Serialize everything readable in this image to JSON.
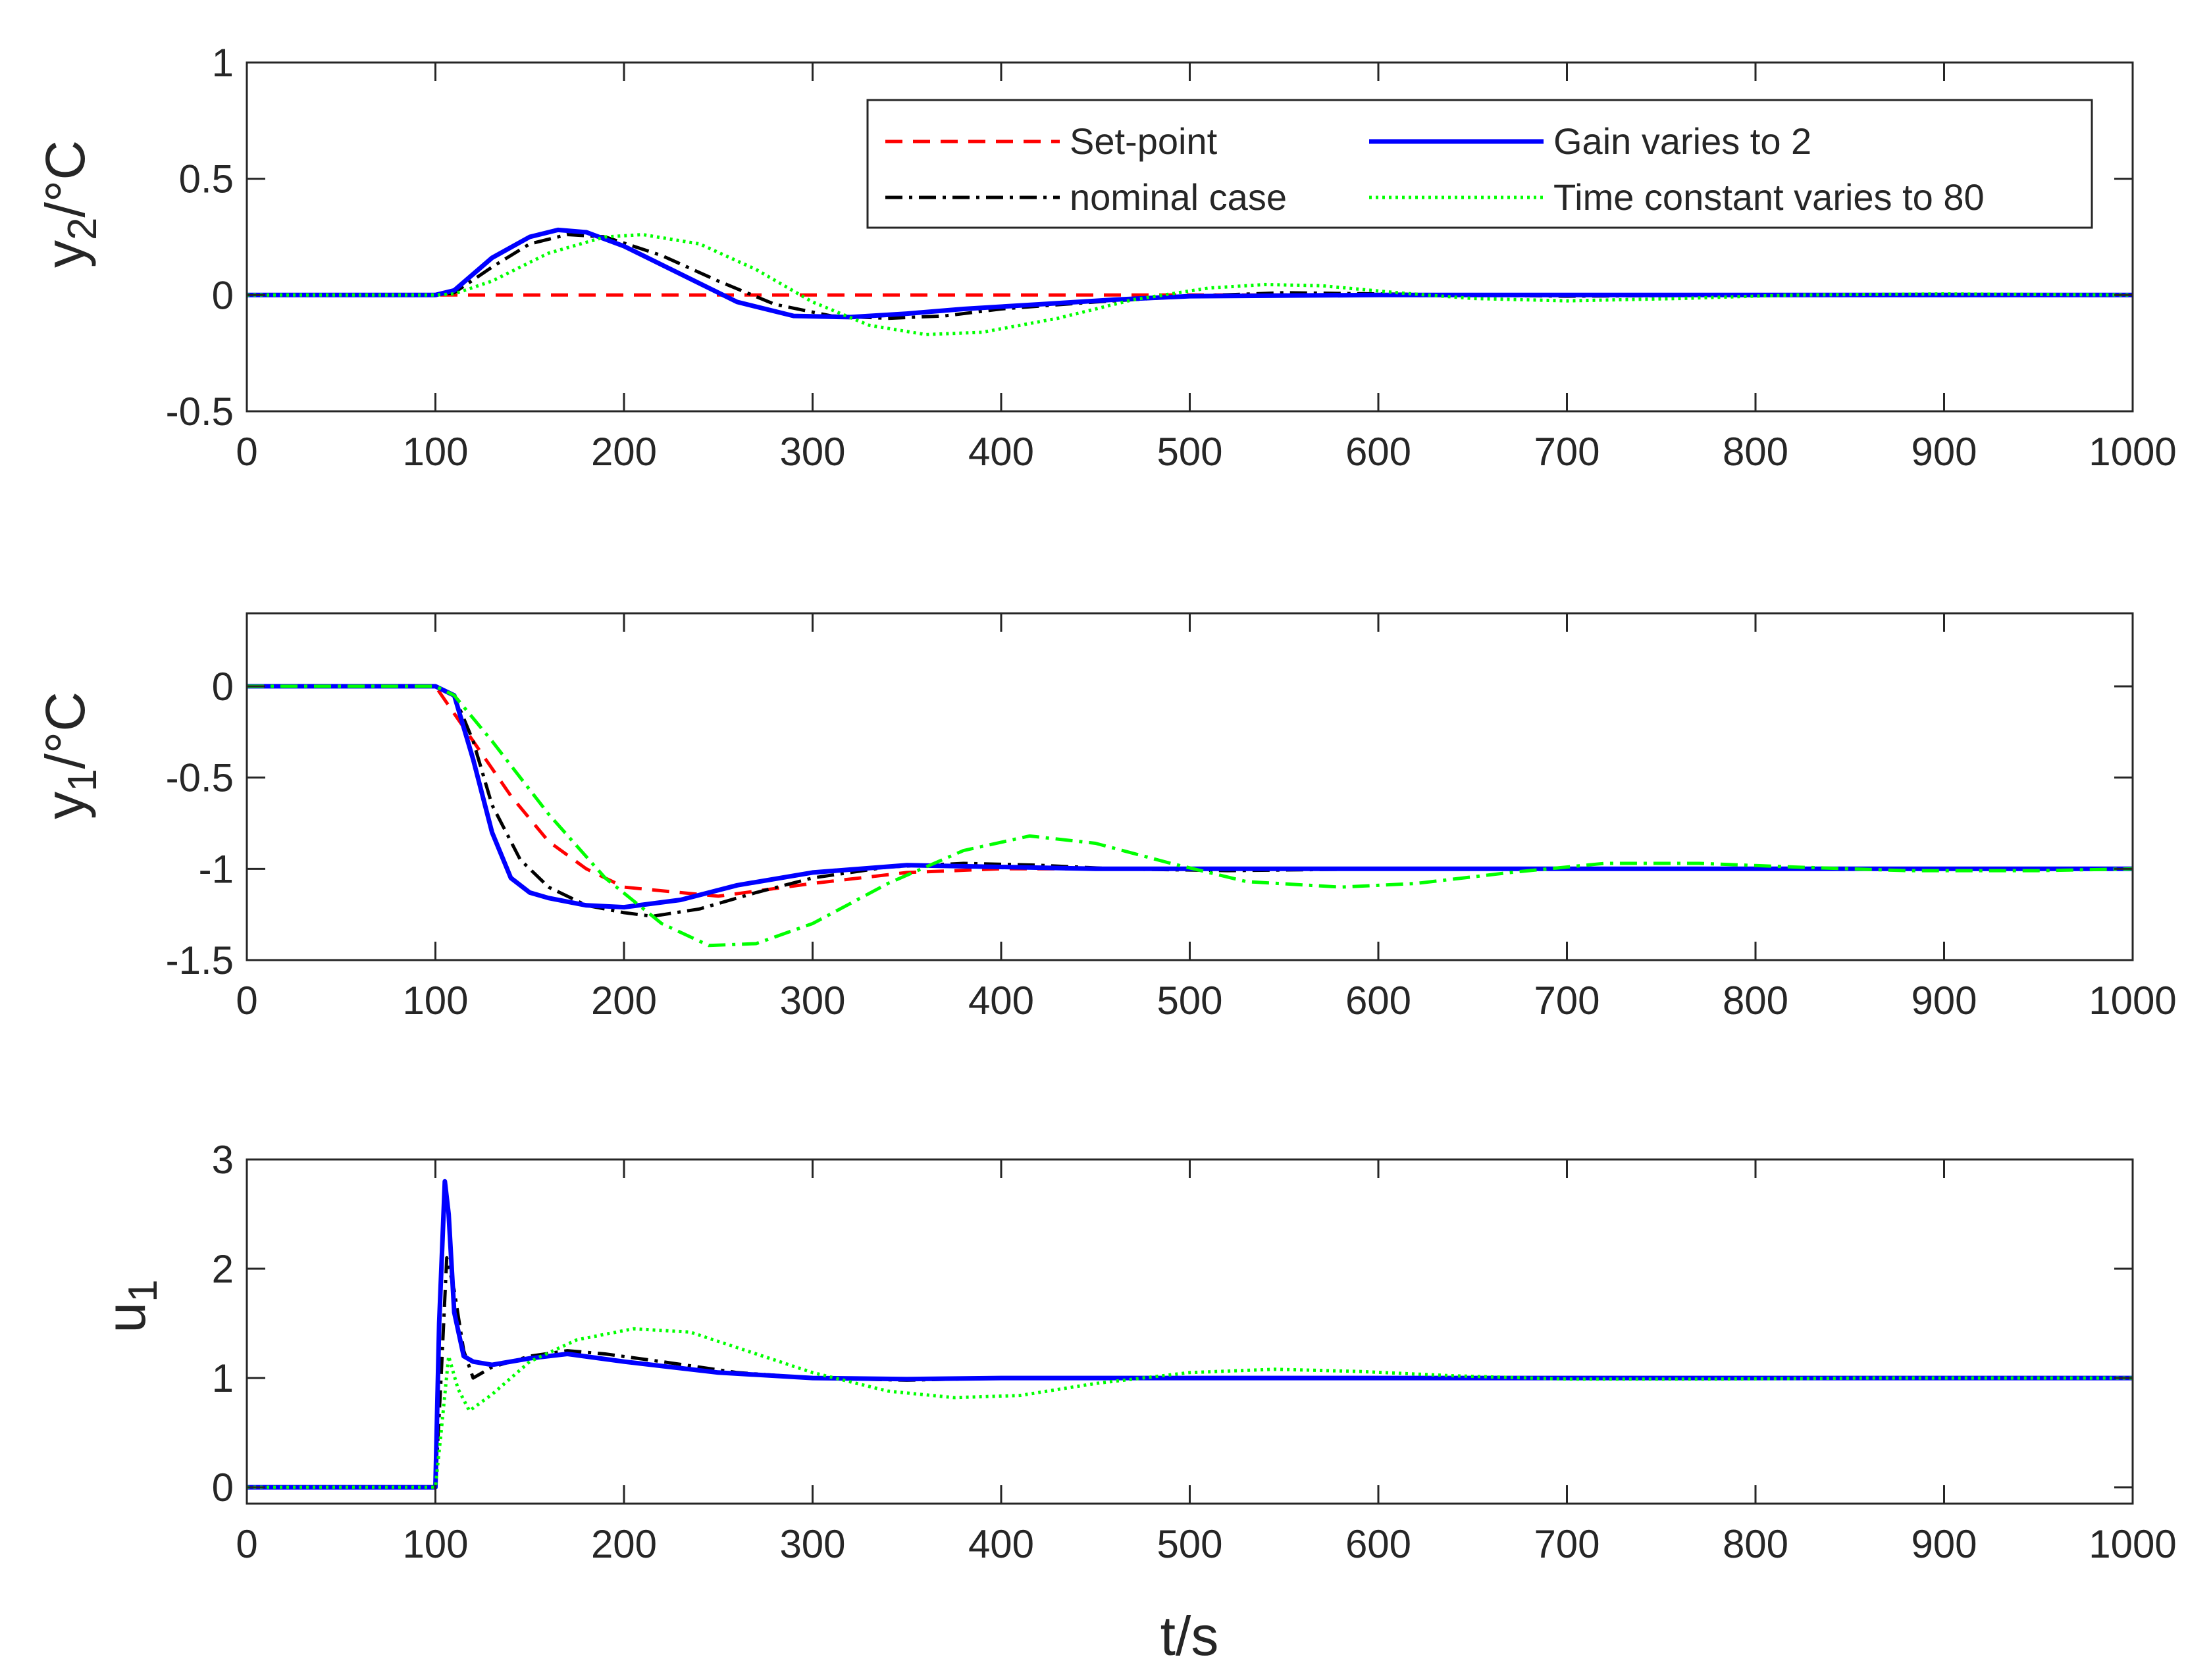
{
  "chart_data": [
    {
      "type": "line",
      "id": "y2",
      "ylabel": {
        "main": "y",
        "sub": "2",
        "unit": "/°C"
      },
      "xlabel": "",
      "xlim": [
        0,
        1000
      ],
      "ylim": [
        -0.5,
        1
      ],
      "xticks": [
        0,
        100,
        200,
        300,
        400,
        500,
        600,
        700,
        800,
        900,
        1000
      ],
      "yticks": [
        -0.5,
        0,
        0.5,
        1
      ],
      "xtick_labels": [
        "0",
        "100",
        "200",
        "300",
        "400",
        "500",
        "600",
        "700",
        "800",
        "900",
        "1000"
      ],
      "ytick_labels": [
        "-0.5",
        "0",
        "0.5",
        "1"
      ],
      "legend": {
        "position": "top-right",
        "entries": [
          {
            "series": "setpoint",
            "label": "Set-point"
          },
          {
            "series": "gain",
            "label": "Gain varies to 2"
          },
          {
            "series": "nominal",
            "label": "nominal case"
          },
          {
            "series": "timeconst",
            "label": "Time constant varies to 80"
          }
        ]
      },
      "series": [
        {
          "key": "setpoint",
          "name": "Set-point",
          "color": "#ff0000",
          "dash": "dashed",
          "x": [
            0,
            1000
          ],
          "y": [
            0,
            0
          ]
        },
        {
          "key": "nominal",
          "name": "nominal case",
          "color": "#000000",
          "dash": "dashdot",
          "x": [
            0,
            100,
            110,
            130,
            150,
            170,
            190,
            220,
            250,
            280,
            310,
            340,
            370,
            400,
            450,
            500,
            550,
            600,
            700,
            800,
            1000
          ],
          "y": [
            0,
            0,
            0.01,
            0.12,
            0.22,
            0.26,
            0.25,
            0.17,
            0.06,
            -0.04,
            -0.09,
            -0.1,
            -0.09,
            -0.06,
            -0.03,
            -0.005,
            0.01,
            0.005,
            -0.005,
            0,
            0
          ]
        },
        {
          "key": "gain",
          "name": "Gain varies to 2",
          "color": "#0000ff",
          "dash": "solid",
          "x": [
            0,
            100,
            110,
            130,
            150,
            165,
            180,
            200,
            230,
            260,
            290,
            320,
            350,
            380,
            420,
            460,
            500,
            600,
            700,
            1000
          ],
          "y": [
            0,
            0,
            0.02,
            0.16,
            0.25,
            0.28,
            0.27,
            0.21,
            0.09,
            -0.03,
            -0.09,
            -0.095,
            -0.08,
            -0.06,
            -0.04,
            -0.02,
            -0.005,
            0,
            0,
            0
          ]
        },
        {
          "key": "timeconst",
          "name": "Time constant varies to 80",
          "color": "#00ff00",
          "dash": "dotted",
          "x": [
            0,
            100,
            110,
            130,
            160,
            190,
            210,
            240,
            270,
            300,
            330,
            360,
            390,
            430,
            470,
            510,
            540,
            570,
            610,
            650,
            700,
            760,
            820,
            900,
            1000
          ],
          "y": [
            0,
            0,
            0.005,
            0.06,
            0.18,
            0.25,
            0.26,
            0.22,
            0.11,
            -0.03,
            -0.13,
            -0.17,
            -0.16,
            -0.1,
            -0.02,
            0.03,
            0.045,
            0.04,
            0.01,
            -0.015,
            -0.025,
            -0.015,
            0,
            0.005,
            0
          ]
        }
      ]
    },
    {
      "type": "line",
      "id": "y1",
      "ylabel": {
        "main": "y",
        "sub": "1",
        "unit": "/°C"
      },
      "xlabel": "",
      "xlim": [
        0,
        1000
      ],
      "ylim": [
        -1.5,
        0.4
      ],
      "xticks": [
        0,
        100,
        200,
        300,
        400,
        500,
        600,
        700,
        800,
        900,
        1000
      ],
      "yticks": [
        -1.5,
        -1,
        -0.5,
        0
      ],
      "xtick_labels": [
        "0",
        "100",
        "200",
        "300",
        "400",
        "500",
        "600",
        "700",
        "800",
        "900",
        "1000"
      ],
      "ytick_labels": [
        "-1.5",
        "-1",
        "-0.5",
        "0"
      ],
      "series": [
        {
          "key": "setpoint",
          "name": "Set-point",
          "color": "#ff0000",
          "dash": "dashed",
          "x": [
            0,
            100,
            120,
            140,
            160,
            180,
            200,
            250,
            300,
            350,
            400,
            450,
            500,
            600,
            700,
            800,
            1000
          ],
          "y": [
            0,
            0,
            -0.3,
            -0.6,
            -0.85,
            -1.0,
            -1.1,
            -1.15,
            -1.08,
            -1.02,
            -1.0,
            -1.0,
            -1.0,
            -1.0,
            -1.0,
            -1.0,
            -1.0
          ]
        },
        {
          "key": "nominal",
          "name": "nominal case",
          "color": "#000000",
          "dash": "dashdot",
          "x": [
            0,
            100,
            110,
            120,
            130,
            145,
            160,
            180,
            200,
            215,
            240,
            270,
            300,
            340,
            380,
            420,
            460,
            520,
            600,
            700,
            1000
          ],
          "y": [
            0,
            0,
            -0.05,
            -0.3,
            -0.65,
            -0.95,
            -1.1,
            -1.2,
            -1.24,
            -1.26,
            -1.22,
            -1.13,
            -1.05,
            -0.99,
            -0.97,
            -0.98,
            -1.0,
            -1.01,
            -1.0,
            -1.0,
            -1.0
          ]
        },
        {
          "key": "gain",
          "name": "Gain varies to 2",
          "color": "#0000ff",
          "dash": "solid",
          "x": [
            0,
            100,
            110,
            120,
            130,
            140,
            150,
            160,
            180,
            200,
            230,
            260,
            300,
            350,
            400,
            450,
            500,
            600,
            1000
          ],
          "y": [
            0,
            0,
            -0.05,
            -0.4,
            -0.8,
            -1.05,
            -1.13,
            -1.16,
            -1.2,
            -1.21,
            -1.17,
            -1.09,
            -1.02,
            -0.98,
            -0.99,
            -1.0,
            -1.0,
            -1.0,
            -1.0
          ]
        },
        {
          "key": "timeconst",
          "name": "Time constant varies to 80",
          "color": "#00ff00",
          "dash": "dashdot",
          "x": [
            0,
            100,
            110,
            130,
            160,
            190,
            220,
            245,
            270,
            300,
            340,
            380,
            415,
            450,
            490,
            530,
            580,
            620,
            670,
            720,
            770,
            820,
            880,
            950,
            1000
          ],
          "y": [
            0,
            0,
            -0.05,
            -0.3,
            -0.7,
            -1.05,
            -1.3,
            -1.42,
            -1.41,
            -1.3,
            -1.08,
            -0.9,
            -0.82,
            -0.86,
            -0.97,
            -1.07,
            -1.1,
            -1.08,
            -1.02,
            -0.97,
            -0.97,
            -0.99,
            -1.01,
            -1.01,
            -1.0
          ]
        }
      ]
    },
    {
      "type": "line",
      "id": "u1",
      "ylabel": {
        "main": "u",
        "sub": "1",
        "unit": ""
      },
      "xlabel": "t/s",
      "xlim": [
        0,
        1000
      ],
      "ylim": [
        -0.15,
        3
      ],
      "xticks": [
        0,
        100,
        200,
        300,
        400,
        500,
        600,
        700,
        800,
        900,
        1000
      ],
      "yticks": [
        0,
        1,
        2,
        3
      ],
      "xtick_labels": [
        "0",
        "100",
        "200",
        "300",
        "400",
        "500",
        "600",
        "700",
        "800",
        "900",
        "1000"
      ],
      "ytick_labels": [
        "0",
        "1",
        "2",
        "3"
      ],
      "series": [
        {
          "key": "nominal",
          "name": "nominal case",
          "color": "#000000",
          "dash": "dashdot",
          "x": [
            0,
            100,
            103,
            106,
            110,
            115,
            120,
            130,
            150,
            170,
            190,
            220,
            260,
            300,
            350,
            400,
            500,
            600,
            1000
          ],
          "y": [
            0,
            0,
            1.0,
            2.1,
            1.8,
            1.25,
            1.0,
            1.1,
            1.2,
            1.25,
            1.22,
            1.15,
            1.05,
            1.0,
            0.98,
            1.0,
            1.0,
            1.0,
            1.0
          ]
        },
        {
          "key": "gain",
          "name": "Gain varies to 2",
          "color": "#0000ff",
          "dash": "solid",
          "x": [
            0,
            100,
            102,
            105,
            107,
            110,
            115,
            120,
            130,
            150,
            170,
            200,
            250,
            300,
            350,
            400,
            500,
            1000
          ],
          "y": [
            0,
            0,
            1.5,
            2.8,
            2.5,
            1.6,
            1.2,
            1.15,
            1.12,
            1.18,
            1.22,
            1.15,
            1.05,
            1.0,
            0.99,
            1.0,
            1.0,
            1.0
          ]
        },
        {
          "key": "timeconst",
          "name": "Time constant varies to 80",
          "color": "#00ff00",
          "dash": "dotted",
          "x": [
            0,
            100,
            103,
            107,
            112,
            118,
            130,
            150,
            175,
            205,
            235,
            265,
            300,
            340,
            375,
            410,
            450,
            500,
            545,
            590,
            640,
            700,
            780,
            860,
            1000
          ],
          "y": [
            0,
            0,
            0.5,
            1.2,
            0.9,
            0.7,
            0.85,
            1.15,
            1.35,
            1.45,
            1.42,
            1.25,
            1.05,
            0.88,
            0.82,
            0.84,
            0.95,
            1.05,
            1.08,
            1.06,
            1.02,
            0.99,
            0.99,
            1.0,
            1.0
          ]
        }
      ]
    }
  ]
}
